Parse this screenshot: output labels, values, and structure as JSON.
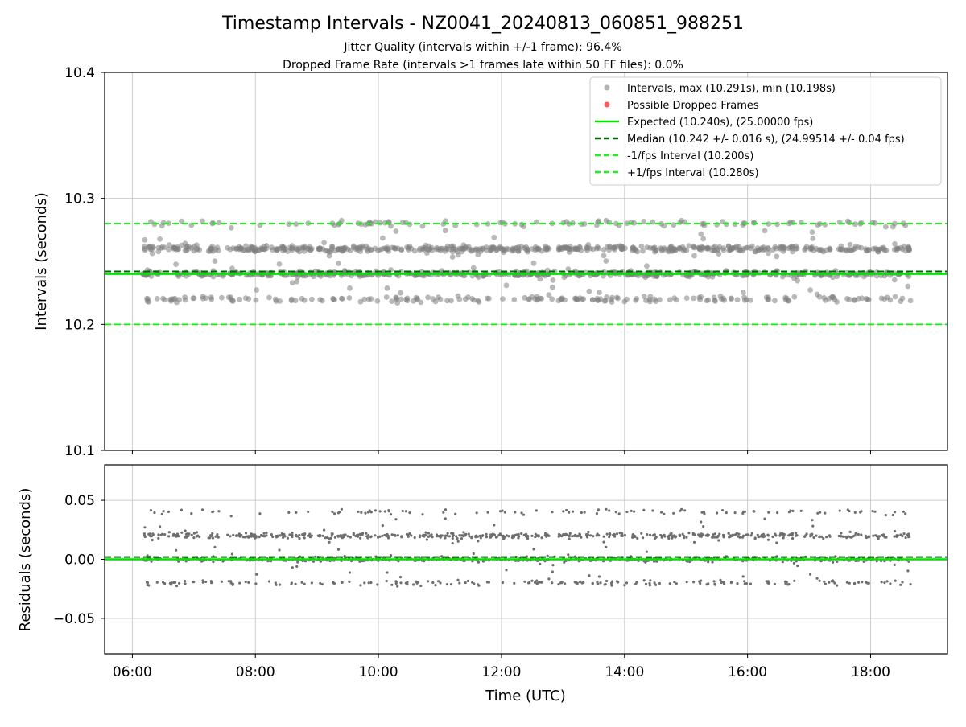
{
  "colors": {
    "points": "#808080",
    "dropped": "#ff5a5a",
    "expected": "#00e600",
    "median": "#006400",
    "interval": "#22ee22",
    "grid": "#cccccc"
  },
  "chart_data": [
    {
      "type": "scatter",
      "title": "Timestamp Intervals - NZ0041_20240813_060851_988251",
      "subtitle_1": "Jitter Quality (intervals within +/-1 frame): 96.4%",
      "subtitle_2": "Dropped Frame Rate (intervals >1 frames late within 50 FF files): 0.0%",
      "xlabel": "Time (UTC)",
      "ylabel": "Intervals (seconds)",
      "xlim_hours": [
        5.55,
        19.25
      ],
      "ylim": [
        10.1,
        10.4
      ],
      "x_ticks": [
        "06:00",
        "08:00",
        "10:00",
        "12:00",
        "14:00",
        "16:00",
        "18:00"
      ],
      "y_ticks": [
        "10.1",
        "10.2",
        "10.3",
        "10.4"
      ],
      "grid": true,
      "legend_position": "upper right",
      "x_range_hours": [
        6.15,
        18.65
      ],
      "point_bands_seconds": [
        10.22,
        10.24,
        10.26,
        10.28
      ],
      "max_interval": 10.291,
      "min_interval": 10.198,
      "series": [
        {
          "name": "Intervals, max (10.291s), min (10.198s)",
          "kind": "scatter"
        },
        {
          "name": "Possible Dropped Frames",
          "kind": "scatter",
          "values": []
        },
        {
          "name": "Expected (10.240s), (25.00000 fps)",
          "kind": "hline",
          "y": 10.24
        },
        {
          "name": "Median (10.242 +/- 0.016 s), (24.99514 +/- 0.04 fps)",
          "kind": "hline",
          "y": 10.242
        },
        {
          "name": "-1/fps Interval (10.200s)",
          "kind": "hline",
          "y": 10.2
        },
        {
          "name": "+1/fps Interval (10.280s)",
          "kind": "hline",
          "y": 10.28
        }
      ]
    },
    {
      "type": "scatter",
      "xlabel": "Time (UTC)",
      "ylabel": "Residuals (seconds)",
      "ylim": [
        -0.08,
        0.08
      ],
      "y_ticks": [
        "0.05",
        "0.00",
        "−0.05"
      ],
      "grid": true,
      "point_bands_seconds": [
        -0.02,
        0.0,
        0.02,
        0.04
      ],
      "reference_lines": [
        0.0,
        0.002
      ]
    }
  ]
}
